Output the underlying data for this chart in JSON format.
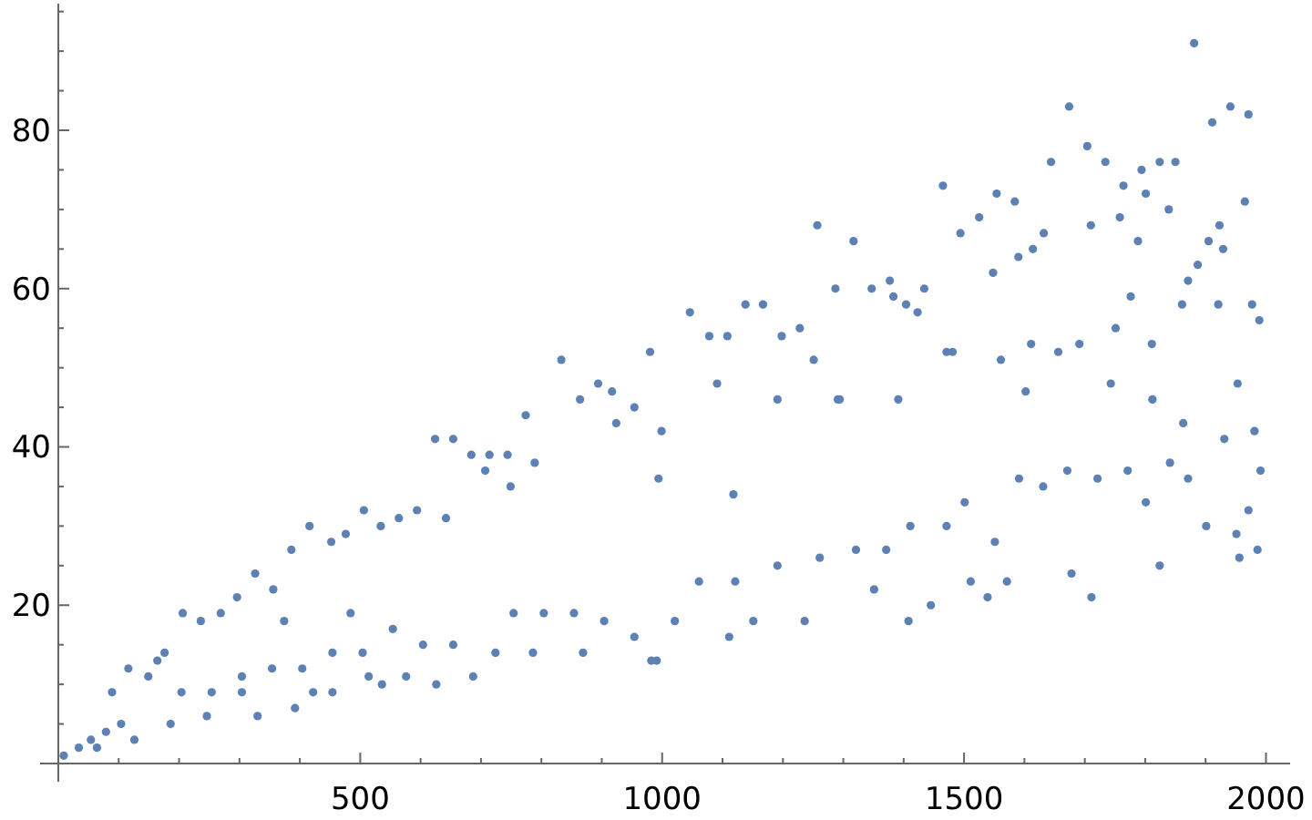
{
  "chart_data": {
    "type": "scatter",
    "color": "#5e81b5",
    "marker": "circle",
    "xlim": [
      0,
      2040
    ],
    "ylim": [
      0,
      96
    ],
    "xticks": [
      {
        "value": 100,
        "label": null
      },
      {
        "value": 200,
        "label": null
      },
      {
        "value": 300,
        "label": null
      },
      {
        "value": 400,
        "label": null
      },
      500,
      {
        "value": 600,
        "label": null
      },
      {
        "value": 700,
        "label": null
      },
      {
        "value": 800,
        "label": null
      },
      {
        "value": 900,
        "label": null
      },
      1000,
      {
        "value": 1100,
        "label": null
      },
      {
        "value": 1200,
        "label": null
      },
      {
        "value": 1300,
        "label": null
      },
      {
        "value": 1400,
        "label": null
      },
      1500,
      {
        "value": 1600,
        "label": null
      },
      {
        "value": 1700,
        "label": null
      },
      {
        "value": 1800,
        "label": null
      },
      {
        "value": 1900,
        "label": null
      },
      2000
    ],
    "yticks": [
      {
        "value": 5,
        "label": null
      },
      {
        "value": 10,
        "label": null
      },
      {
        "value": 15,
        "label": null
      },
      20,
      {
        "value": 25,
        "label": null
      },
      {
        "value": 30,
        "label": null
      },
      {
        "value": 35,
        "label": null
      },
      40,
      {
        "value": 45,
        "label": null
      },
      {
        "value": 50,
        "label": null
      },
      {
        "value": 55,
        "label": null
      },
      60,
      {
        "value": 65,
        "label": null
      },
      {
        "value": 70,
        "label": null
      },
      {
        "value": 75,
        "label": null
      },
      80,
      {
        "value": 85,
        "label": null
      },
      {
        "value": 90,
        "label": null
      },
      {
        "value": 95,
        "label": null
      }
    ],
    "x": [
      9,
      34,
      54,
      79,
      64,
      104,
      89,
      116,
      126,
      149,
      164,
      176,
      186,
      206,
      204,
      236,
      246,
      269,
      296,
      304,
      326,
      330,
      356,
      374,
      386,
      392,
      416,
      422,
      452,
      476,
      454,
      484,
      506,
      514,
      534,
      536,
      564,
      576,
      594,
      624,
      626,
      654,
      642,
      687,
      684,
      714,
      707,
      744,
      749,
      724,
      774,
      786,
      789,
      833,
      864,
      869,
      894,
      917,
      924,
      954,
      982,
      980,
      994,
      999,
      804,
      754,
      654,
      604,
      554,
      504,
      454,
      404,
      354,
      304,
      254,
      854,
      904,
      954,
      991,
      1021,
      1046,
      1078,
      1108,
      1111,
      1118,
      1138,
      1167,
      1151,
      1198,
      1228,
      1236,
      1257,
      1251,
      1287,
      1294,
      1317,
      1347,
      1351,
      1377,
      1383,
      1404,
      1408,
      1434,
      1423,
      1445,
      1465,
      1481,
      1494,
      1511,
      1525,
      1539,
      1548,
      1554,
      1584,
      1590,
      1571,
      1602,
      1614,
      1632,
      1644,
      1656,
      1674,
      1678,
      1704,
      1710,
      1711,
      1734,
      1743,
      1758,
      1764,
      1776,
      1788,
      1794,
      1801,
      1812,
      1824,
      1824,
      1839,
      1850,
      1863,
      1871,
      1881,
      1887,
      1905,
      1911,
      1923,
      1929,
      1941,
      1953,
      1956,
      1965,
      1971,
      1977,
      1981,
      1991,
      1989,
      1986,
      1061,
      1121,
      1191,
      1261,
      1321,
      1371,
      1411,
      1471,
      1501,
      1551,
      1591,
      1631,
      1671,
      1721,
      1771,
      1801,
      1841,
      1871,
      1901,
      1931,
      1951,
      1971,
      1091,
      1191,
      1291,
      1391,
      1471,
      1561,
      1611,
      1691,
      1751,
      1811,
      1861,
      1921
    ],
    "values": [
      1,
      2,
      3,
      4,
      2,
      5,
      9,
      12,
      3,
      11,
      13,
      14,
      5,
      19,
      9,
      18,
      6,
      19,
      21,
      9,
      24,
      6,
      22,
      18,
      27,
      7,
      30,
      9,
      28,
      29,
      9,
      19,
      32,
      11,
      30,
      10,
      31,
      11,
      32,
      41,
      10,
      41,
      31,
      11,
      39,
      39,
      37,
      39,
      35,
      14,
      44,
      14,
      38,
      51,
      46,
      14,
      48,
      47,
      43,
      45,
      13,
      52,
      36,
      42,
      19,
      19,
      15,
      15,
      17,
      14,
      14,
      12,
      12,
      11,
      9,
      19,
      18,
      16,
      13,
      18,
      57,
      54,
      54,
      16,
      34,
      58,
      58,
      18,
      54,
      55,
      18,
      68,
      51,
      60,
      46,
      66,
      60,
      22,
      61,
      59,
      58,
      18,
      60,
      57,
      20,
      73,
      52,
      67,
      23,
      69,
      21,
      62,
      72,
      71,
      64,
      23,
      47,
      65,
      67,
      76,
      52,
      83,
      24,
      78,
      68,
      21,
      76,
      48,
      69,
      73,
      59,
      66,
      75,
      72,
      46,
      76,
      25,
      70,
      76,
      43,
      61,
      91,
      63,
      66,
      81,
      68,
      65,
      83,
      48,
      26,
      71,
      82,
      58,
      42,
      37,
      56,
      27,
      23,
      23,
      25,
      26,
      27,
      27,
      30,
      30,
      33,
      28,
      36,
      35,
      37,
      36,
      37,
      33,
      38,
      36,
      30,
      41,
      29,
      32,
      48,
      46,
      46,
      46,
      52,
      51,
      53,
      53,
      55,
      53,
      58,
      58
    ]
  }
}
